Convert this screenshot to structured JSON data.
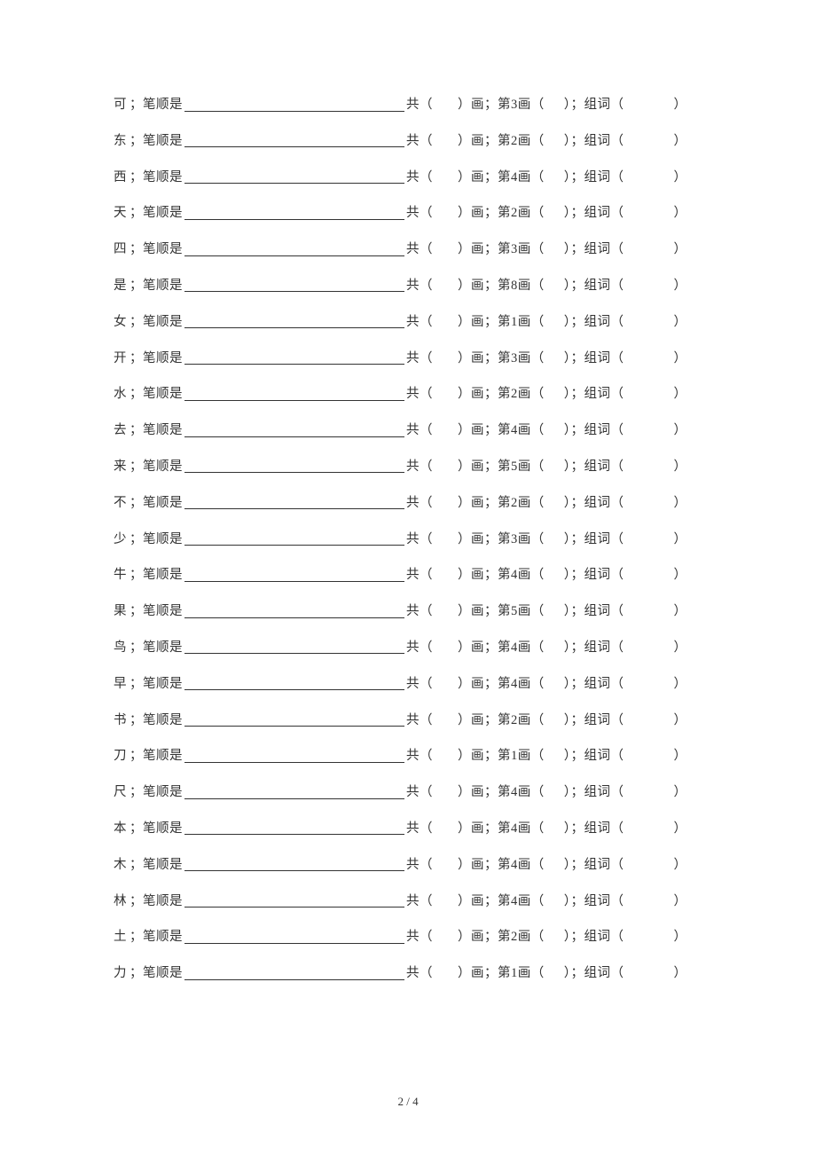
{
  "labels": {
    "sep": "；",
    "bishun": "笔顺是",
    "gong": "共（",
    "hua_di": "）画；第 ",
    "hua_paren": " 画（",
    "zuci": "）；组词（",
    "close": "）"
  },
  "rows": [
    {
      "char": "可",
      "stroke": "3"
    },
    {
      "char": "东",
      "stroke": "2"
    },
    {
      "char": "西",
      "stroke": "4"
    },
    {
      "char": "天",
      "stroke": "2"
    },
    {
      "char": "四",
      "stroke": "3"
    },
    {
      "char": "是",
      "stroke": "8"
    },
    {
      "char": "女",
      "stroke": "1"
    },
    {
      "char": "开",
      "stroke": "3"
    },
    {
      "char": "水",
      "stroke": "2"
    },
    {
      "char": "去",
      "stroke": "4"
    },
    {
      "char": "来",
      "stroke": "5"
    },
    {
      "char": "不",
      "stroke": "2"
    },
    {
      "char": "少",
      "stroke": "3"
    },
    {
      "char": "牛",
      "stroke": "4"
    },
    {
      "char": "果",
      "stroke": "5"
    },
    {
      "char": "鸟",
      "stroke": "4"
    },
    {
      "char": "早",
      "stroke": "4"
    },
    {
      "char": "书",
      "stroke": "2"
    },
    {
      "char": "刀",
      "stroke": "1"
    },
    {
      "char": "尺",
      "stroke": "4"
    },
    {
      "char": "本",
      "stroke": "4"
    },
    {
      "char": "木",
      "stroke": "4"
    },
    {
      "char": "林",
      "stroke": "4"
    },
    {
      "char": "土",
      "stroke": "2"
    },
    {
      "char": "力",
      "stroke": "1"
    }
  ],
  "footer": {
    "page": "2",
    "sep": " / ",
    "total": "4"
  }
}
